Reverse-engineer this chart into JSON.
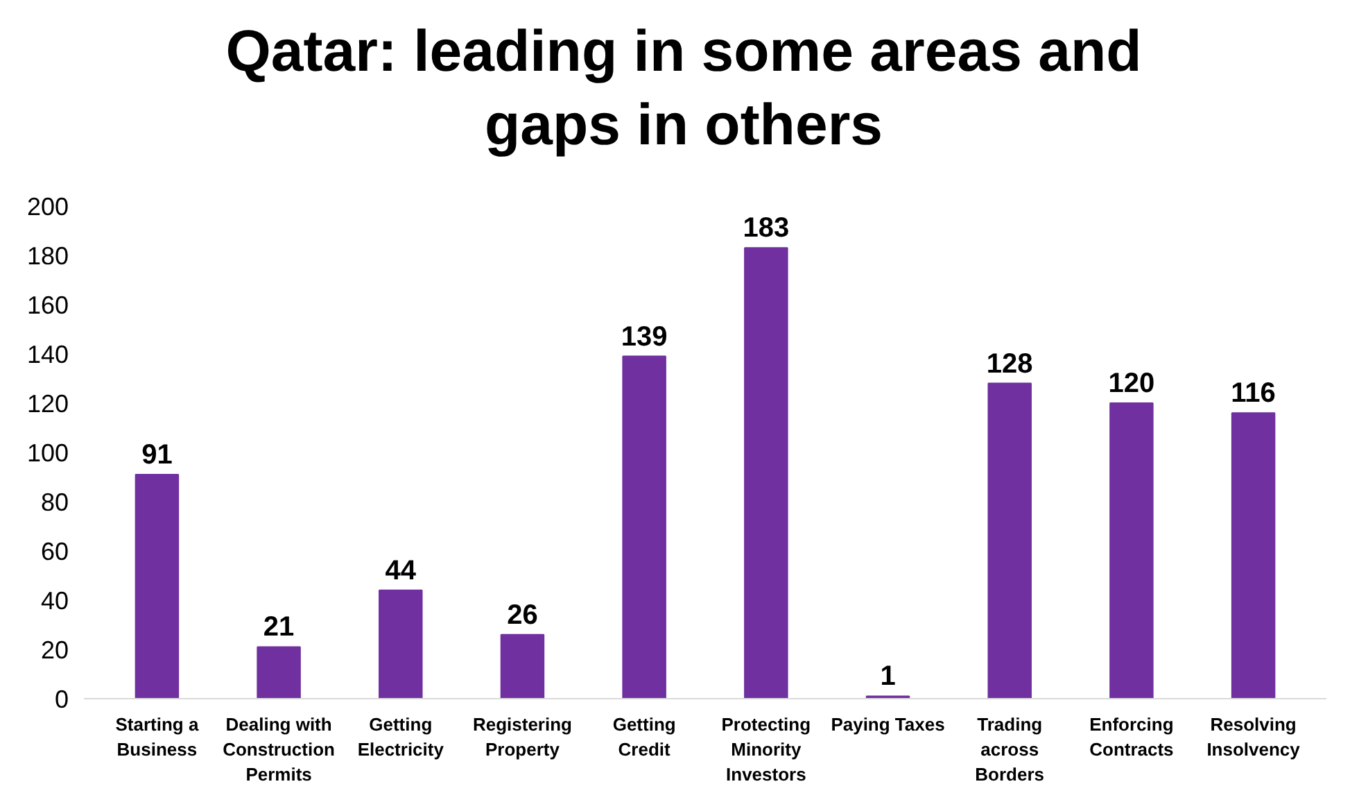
{
  "chart_data": {
    "type": "bar",
    "title": "Qatar: leading in some areas and gaps in others",
    "categories": [
      "Starting a Business",
      "Dealing with Construction Permits",
      "Getting Electricity",
      "Registering Property",
      "Getting Credit",
      "Protecting Minority Investors",
      "Paying Taxes",
      "Trading across Borders",
      "Enforcing Contracts",
      "Resolving Insolvency"
    ],
    "values": [
      91,
      21,
      44,
      26,
      139,
      183,
      1,
      128,
      120,
      116
    ],
    "color": "#7030a0",
    "ylim": [
      0,
      200
    ],
    "yticks": [
      0,
      20,
      40,
      60,
      80,
      100,
      120,
      140,
      160,
      180,
      200
    ],
    "data_labels": true
  }
}
